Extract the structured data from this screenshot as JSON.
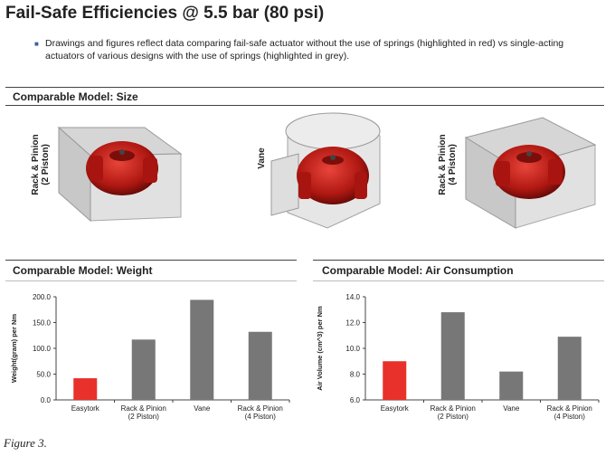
{
  "title": "Fail-Safe Efficiencies @ 5.5 bar (80 psi)",
  "bullet": "Drawings and figures reflect data comparing fail-safe actuator without the use of springs (highlighted in red) vs single-acting actuators of various designs with the use of springs (highlighted in grey).",
  "size_section": {
    "heading": "Comparable Model: Size",
    "models": [
      {
        "label_line1": "Rack & Pinion",
        "label_line2": "(2 Piston)"
      },
      {
        "label_line1": "Vane",
        "label_line2": ""
      },
      {
        "label_line1": "Rack & Pinion",
        "label_line2": "(4 Piston)"
      }
    ]
  },
  "weight_section": {
    "heading": "Comparable Model: Weight"
  },
  "air_section": {
    "heading": "Comparable Model: Air Consumption"
  },
  "caption": "Figure 3.",
  "colors": {
    "red": "#e8312a",
    "grey": "#777777"
  },
  "chart_data": [
    {
      "type": "bar",
      "title": "Comparable Model: Weight",
      "ylabel": "Weight(gram) per Nm",
      "xlabel": "",
      "ylim": [
        0,
        200
      ],
      "yticks": [
        0,
        50,
        100,
        150,
        200
      ],
      "ytick_labels": [
        "0.0",
        "50.0",
        "100.0",
        "150.0",
        "200.0"
      ],
      "categories": [
        {
          "line1": "Easytork",
          "line2": ""
        },
        {
          "line1": "Rack & Pinion",
          "line2": "(2 Piston)"
        },
        {
          "line1": "Vane",
          "line2": ""
        },
        {
          "line1": "Rack & Pinion",
          "line2": "(4 Piston)"
        }
      ],
      "values": [
        42,
        117,
        194,
        132
      ],
      "bar_colors": [
        "#e8312a",
        "#777777",
        "#777777",
        "#777777"
      ]
    },
    {
      "type": "bar",
      "title": "Comparable Model: Air Consumption",
      "ylabel": "Air Volume (cm^3) per Nm",
      "xlabel": "",
      "ylim": [
        6,
        14
      ],
      "yticks": [
        6,
        8,
        10,
        12,
        14
      ],
      "ytick_labels": [
        "6.0",
        "8.0",
        "10.0",
        "12.0",
        "14.0"
      ],
      "categories": [
        {
          "line1": "Easytork",
          "line2": ""
        },
        {
          "line1": "Rack & Pinion",
          "line2": "(2 Piston)"
        },
        {
          "line1": "Vane",
          "line2": ""
        },
        {
          "line1": "Rack & Pinion",
          "line2": "(4 Piston)"
        }
      ],
      "values": [
        9.0,
        12.8,
        8.2,
        10.9
      ],
      "bar_colors": [
        "#e8312a",
        "#777777",
        "#777777",
        "#777777"
      ]
    }
  ]
}
